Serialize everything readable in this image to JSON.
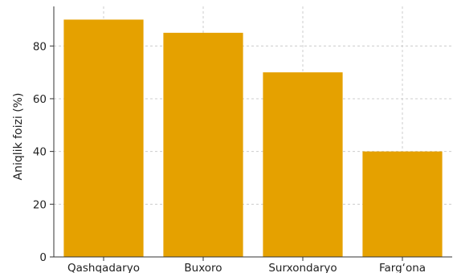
{
  "chart_data": {
    "type": "bar",
    "title": "",
    "xlabel": "",
    "ylabel": "Aniqlik foizi (%)",
    "categories": [
      "Qashqadaryo",
      "Buxoro",
      "Surxondaryo",
      "Farg‘ona"
    ],
    "values": [
      90,
      85,
      70,
      40
    ],
    "ylim": [
      0,
      95
    ],
    "yticks": [
      0,
      20,
      40,
      60,
      80
    ],
    "grid": true,
    "legend": "none",
    "colors": {
      "bar": "#E5A100",
      "grid": "#cccccc",
      "axis": "#333333",
      "background": "#ffffff"
    }
  }
}
